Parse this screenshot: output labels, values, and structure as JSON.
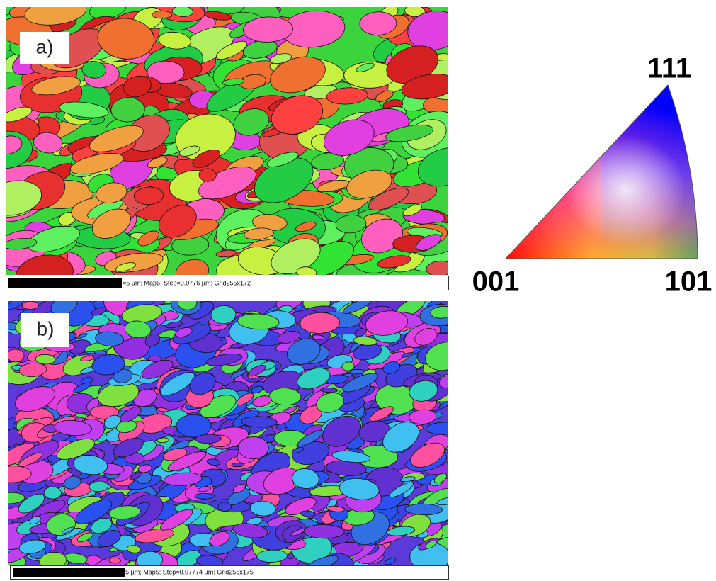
{
  "panels": [
    {
      "label": "a)",
      "caption": "=5 µm; Map6; Step=0.0776 µm; Grid255x172"
    },
    {
      "label": "b)",
      "caption": "5 µm; Map5; Step=0.07774 µm; Grid255x175"
    }
  ],
  "legend": {
    "top": "111",
    "left": "001",
    "right": "101"
  }
}
